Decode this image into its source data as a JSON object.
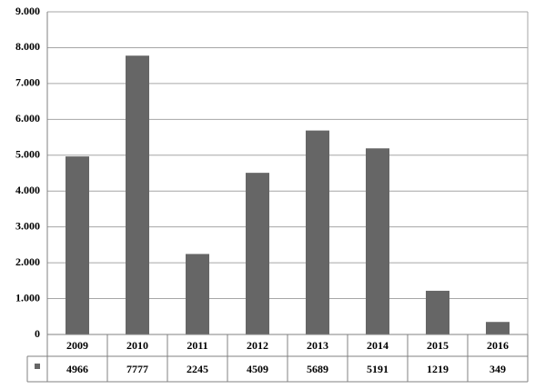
{
  "chart_data": {
    "type": "bar",
    "categories": [
      "2009",
      "2010",
      "2011",
      "2012",
      "2013",
      "2014",
      "2015",
      "2016"
    ],
    "values": [
      4966,
      7777,
      2245,
      4509,
      5689,
      5191,
      1219,
      349
    ],
    "color": "#666666",
    "ylim": [
      0,
      9000
    ],
    "yticks": [
      0,
      {
        "value": 1000,
        "label": "1.000"
      },
      {
        "value": 2000,
        "label": "2.000"
      },
      {
        "value": 3000,
        "label": "3.000"
      },
      {
        "value": 4000,
        "label": "4.000"
      },
      {
        "value": 5000,
        "label": "5.000"
      },
      {
        "value": 6000,
        "label": "6.000"
      },
      {
        "value": 7000,
        "label": "7.000"
      },
      {
        "value": 8000,
        "label": "8.000"
      },
      {
        "value": 9000,
        "label": "9.000"
      }
    ],
    "grid": true
  }
}
